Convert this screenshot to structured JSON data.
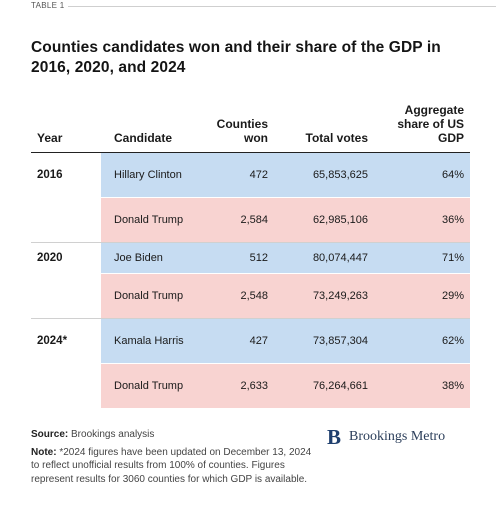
{
  "table_tag": "TABLE 1",
  "title": "Counties candidates won and their share of the GDP in 2016, 2020, and 2024",
  "table": {
    "headers": {
      "year": "Year",
      "candidate": "Candidate",
      "counties_won": "Counties won",
      "total_votes": "Total votes",
      "gdp_share": "Aggregate share of US GDP"
    },
    "rows": [
      {
        "year": "2016",
        "candidate": "Hillary Clinton",
        "counties_won": "472",
        "total_votes": "65,853,625",
        "gdp_share": "64%",
        "party": "dem"
      },
      {
        "year": "",
        "candidate": "Donald Trump",
        "counties_won": "2,584",
        "total_votes": "62,985,106",
        "gdp_share": "36%",
        "party": "rep"
      },
      {
        "year": "2020",
        "candidate": "Joe Biden",
        "counties_won": "512",
        "total_votes": "80,074,447",
        "gdp_share": "71%",
        "party": "dem"
      },
      {
        "year": "",
        "candidate": "Donald Trump",
        "counties_won": "2,548",
        "total_votes": "73,249,263",
        "gdp_share": "29%",
        "party": "rep"
      },
      {
        "year": "2024*",
        "candidate": "Kamala Harris",
        "counties_won": "427",
        "total_votes": "73,857,304",
        "gdp_share": "62%",
        "party": "dem"
      },
      {
        "year": "",
        "candidate": "Donald Trump",
        "counties_won": "2,633",
        "total_votes": "76,264,661",
        "gdp_share": "38%",
        "party": "rep"
      }
    ]
  },
  "colors": {
    "dem": "#c6dcf2",
    "rep": "#f8d3d1",
    "brand": "#1f3f6e"
  },
  "footer": {
    "source_label": "Source:",
    "source_text": "Brookings analysis",
    "note_label": "Note:",
    "note_text": "*2024 figures have been updated on December 13, 2024 to reflect unofficial results from 100% of counties. Figures represent results for 3060 counties for which GDP is available."
  },
  "brand": {
    "mark": "B",
    "name": "Brookings Metro"
  }
}
